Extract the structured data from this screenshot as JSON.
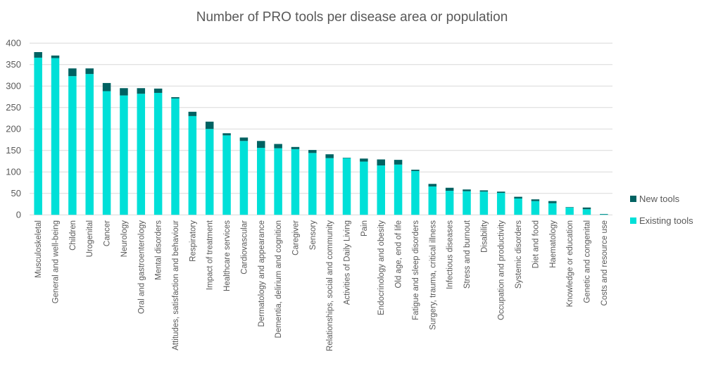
{
  "chart_data": {
    "type": "bar",
    "stacked": true,
    "title": "Number of PRO tools per disease area or population",
    "xlabel": "",
    "ylabel": "",
    "ylim": [
      0,
      400
    ],
    "yticks": [
      0,
      50,
      100,
      150,
      200,
      250,
      300,
      350,
      400
    ],
    "grid": true,
    "legend_position": "right",
    "categories": [
      "Musculoskeletal",
      "General and well-being",
      "Children",
      "Urogenital",
      "Cancer",
      "Neurology",
      "Oral and gastroenterology",
      "Mental disorders",
      "Attitudes, satisfaction and behaviour",
      "Respiratory",
      "Impact of treatment",
      "Healthcare services",
      "Cardiovascular",
      "Dermatology and appearance",
      "Dementia, delirium and cognition",
      "Caregiver",
      "Sensory",
      "Relationships, social and community",
      "Activities of Daily Living",
      "Pain",
      "Endocrinology and obesity",
      "Old age, end of life",
      "Fatigue and sleep disorders",
      "Surgery, trauma, critical illness",
      "Infectious diseases",
      "Stress and burnout",
      "Disability",
      "Occupation and productivity",
      "Systemic disorders",
      "Diet and food",
      "Haematology",
      "Knowledge or education",
      "Genetic and congenital",
      "Costs and resource use"
    ],
    "series": [
      {
        "name": "Existing tools",
        "color": "#00E0D8",
        "values": [
          366,
          365,
          323,
          328,
          288,
          278,
          282,
          284,
          271,
          230,
          200,
          185,
          172,
          156,
          155,
          153,
          144,
          132,
          132,
          124,
          115,
          117,
          102,
          66,
          56,
          55,
          54,
          51,
          38,
          32,
          27,
          17,
          13,
          1
        ]
      },
      {
        "name": "New tools",
        "color": "#006262",
        "values": [
          13,
          6,
          18,
          13,
          19,
          17,
          13,
          10,
          3,
          10,
          17,
          5,
          8,
          16,
          10,
          5,
          7,
          9,
          1,
          7,
          14,
          11,
          3,
          6,
          7,
          4,
          3,
          3,
          4,
          4,
          5,
          1,
          4,
          1
        ]
      }
    ],
    "legend": [
      {
        "label": "New tools",
        "color": "#006262"
      },
      {
        "label": "Existing tools",
        "color": "#00E0D8"
      }
    ]
  }
}
